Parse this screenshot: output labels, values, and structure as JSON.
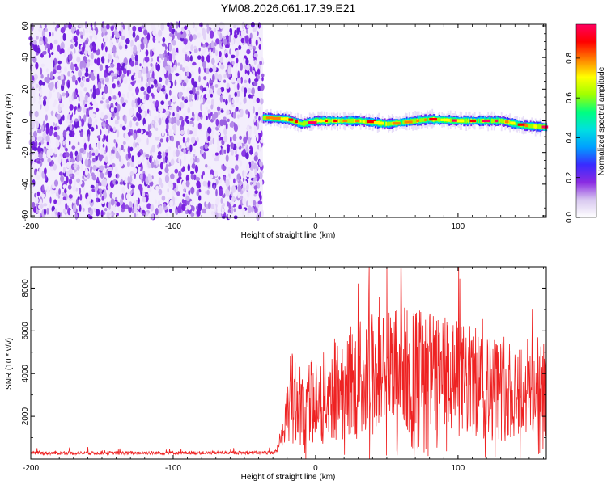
{
  "title": "YM08.2026.061.17.39.E21",
  "chart_data": [
    {
      "type": "heatmap",
      "name": "spectrogram",
      "xlabel": "Height of straight line (km)",
      "ylabel": "Frequency (Hz)",
      "xlim": [
        -200,
        162
      ],
      "ylim": [
        -61,
        61
      ],
      "xticks": [
        -200,
        -100,
        0,
        100
      ],
      "yticks": [
        -60,
        -40,
        -20,
        0,
        20,
        40,
        60
      ],
      "noise_region": {
        "x_from": -200,
        "x_to": -37,
        "freq_from": -61,
        "freq_to": 61,
        "level": "low (0.0-0.2)"
      },
      "signal_track": {
        "x_from": -37,
        "x_to": 162,
        "center_freq": [
          {
            "x": -37,
            "f": 2
          },
          {
            "x": -20,
            "f": 1
          },
          {
            "x": -10,
            "f": -2
          },
          {
            "x": 0,
            "f": 0
          },
          {
            "x": 30,
            "f": 0
          },
          {
            "x": 50,
            "f": -2
          },
          {
            "x": 80,
            "f": 1
          },
          {
            "x": 100,
            "f": 0
          },
          {
            "x": 130,
            "f": 0
          },
          {
            "x": 145,
            "f": -3
          },
          {
            "x": 162,
            "f": -4
          }
        ],
        "peak_amplitude": 0.95,
        "bandwidth_hz": 6
      },
      "colorbar": {
        "label": "Normalized spectral amplitude",
        "range": [
          0,
          0.97
        ],
        "ticks": [
          "0.0",
          "0.2",
          "0.4",
          "0.6",
          "0.8"
        ],
        "colors": [
          "#ffffff",
          "#d8c8f0",
          "#8a2be2",
          "#3a2bff",
          "#00a0ff",
          "#00e0e0",
          "#00ff80",
          "#a0ff00",
          "#ffff00",
          "#ff8000",
          "#ff0000",
          "#ff0060"
        ]
      }
    },
    {
      "type": "line",
      "name": "snr",
      "xlabel": "Height of straight line (km)",
      "ylabel": "SNR (10 * v/v)",
      "xlim": [
        -200,
        162
      ],
      "ylim": [
        0,
        9000
      ],
      "xticks": [
        -200,
        -100,
        0,
        100
      ],
      "yticks": [
        2000,
        4000,
        6000,
        8000
      ],
      "color": "#ee2222",
      "envelope": [
        {
          "x": -200,
          "mean": 280
        },
        {
          "x": -30,
          "mean": 300
        },
        {
          "x": -26,
          "mean": 420
        },
        {
          "x": -22,
          "mean": 1700
        },
        {
          "x": -18,
          "mean": 2900
        },
        {
          "x": -10,
          "mean": 2500
        },
        {
          "x": 0,
          "mean": 2700
        },
        {
          "x": 20,
          "mean": 3500
        },
        {
          "x": 40,
          "mean": 4000
        },
        {
          "x": 60,
          "mean": 4200
        },
        {
          "x": 80,
          "mean": 4000
        },
        {
          "x": 100,
          "mean": 3700
        },
        {
          "x": 130,
          "mean": 3300
        },
        {
          "x": 162,
          "mean": 3300
        }
      ],
      "peak": {
        "x": 60,
        "y": 8900
      }
    }
  ]
}
